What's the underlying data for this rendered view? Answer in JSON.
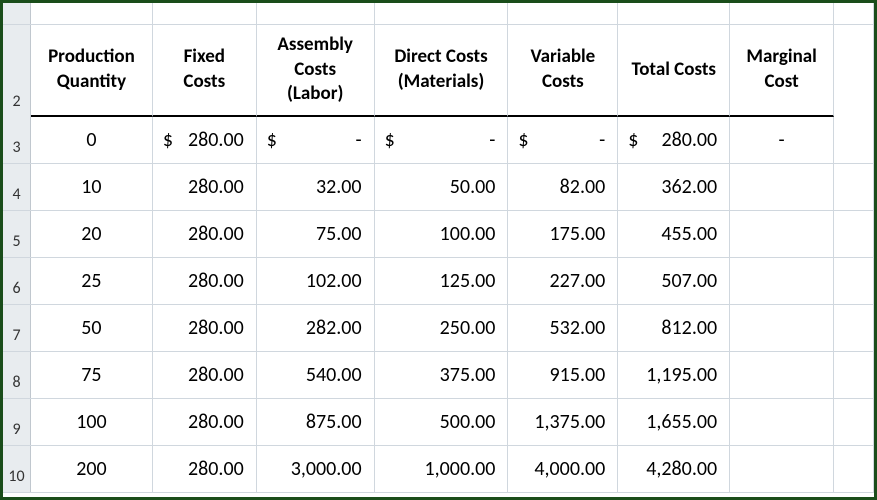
{
  "headers": {
    "col_a": "Production Quantity",
    "col_b": "Fixed Costs",
    "col_c": "Assembly Costs (Labor)",
    "col_d": "Direct Costs (Materials)",
    "col_e": "Variable Costs",
    "col_f": "Total Costs",
    "col_g": "Marginal Cost"
  },
  "row_numbers": [
    "2",
    "3",
    "4",
    "5",
    "6",
    "7",
    "8",
    "9",
    "10"
  ],
  "data": {
    "r3": {
      "qty": "0",
      "fixed_sym": "$",
      "fixed": "280.00",
      "assembly_sym": "$",
      "assembly": "-",
      "direct_sym": "$",
      "direct": "-",
      "variable_sym": "$",
      "variable": "-",
      "total_sym": "$",
      "total": "280.00",
      "marginal": "-"
    },
    "r4": {
      "qty": "10",
      "fixed": "280.00",
      "assembly": "32.00",
      "direct": "50.00",
      "variable": "82.00",
      "total": "362.00",
      "marginal": ""
    },
    "r5": {
      "qty": "20",
      "fixed": "280.00",
      "assembly": "75.00",
      "direct": "100.00",
      "variable": "175.00",
      "total": "455.00",
      "marginal": ""
    },
    "r6": {
      "qty": "25",
      "fixed": "280.00",
      "assembly": "102.00",
      "direct": "125.00",
      "variable": "227.00",
      "total": "507.00",
      "marginal": ""
    },
    "r7": {
      "qty": "50",
      "fixed": "280.00",
      "assembly": "282.00",
      "direct": "250.00",
      "variable": "532.00",
      "total": "812.00",
      "marginal": ""
    },
    "r8": {
      "qty": "75",
      "fixed": "280.00",
      "assembly": "540.00",
      "direct": "375.00",
      "variable": "915.00",
      "total": "1,195.00",
      "marginal": ""
    },
    "r9": {
      "qty": "100",
      "fixed": "280.00",
      "assembly": "875.00",
      "direct": "500.00",
      "variable": "1,375.00",
      "total": "1,655.00",
      "marginal": ""
    },
    "r10": {
      "qty": "200",
      "fixed": "280.00",
      "assembly": "3,000.00",
      "direct": "1,000.00",
      "variable": "4,000.00",
      "total": "4,280.00",
      "marginal": ""
    }
  }
}
